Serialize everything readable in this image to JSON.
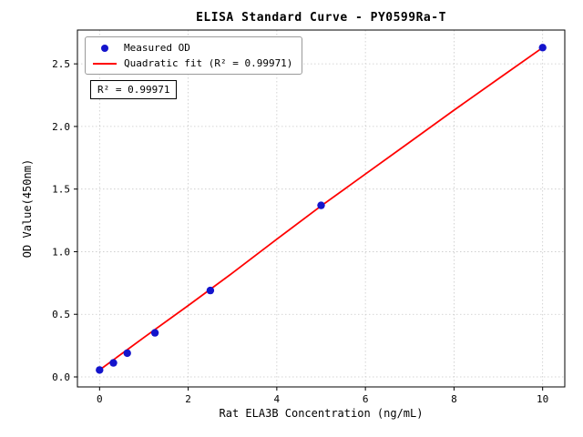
{
  "chart_data": {
    "type": "scatter",
    "title": "ELISA Standard Curve - PY0599Ra-T",
    "xlabel": "Rat ELA3B Concentration (ng/mL)",
    "ylabel": "OD Value(450nm)",
    "xlim": [
      -0.5,
      10.5
    ],
    "ylim": [
      -0.08,
      2.77
    ],
    "xticks": [
      0,
      2,
      4,
      6,
      8,
      10
    ],
    "yticks": [
      0.0,
      0.5,
      1.0,
      1.5,
      2.0,
      2.5
    ],
    "grid": true,
    "legend_position": "upper-left",
    "annotation": "R² = 0.99971",
    "colors": {
      "points": "#1414cc",
      "fit_line": "#ff0000",
      "gridline": "#c8c8c8",
      "axis": "#000000"
    },
    "series": [
      {
        "name": "Measured OD",
        "type": "scatter",
        "color": "#1414cc",
        "x": [
          0,
          0.313,
          0.625,
          1.25,
          2.5,
          5,
          10
        ],
        "y": [
          0.055,
          0.112,
          0.19,
          0.352,
          0.69,
          1.37,
          2.63
        ]
      },
      {
        "name": "Quadratic fit (R² = 0.99971)",
        "type": "line",
        "color": "#ff0000",
        "x": [
          0,
          1,
          2,
          3,
          4,
          5,
          6,
          7,
          8,
          9,
          10
        ],
        "y": [
          0.055,
          0.315,
          0.57,
          0.83,
          1.1,
          1.365,
          1.62,
          1.875,
          2.13,
          2.38,
          2.63
        ]
      }
    ]
  }
}
